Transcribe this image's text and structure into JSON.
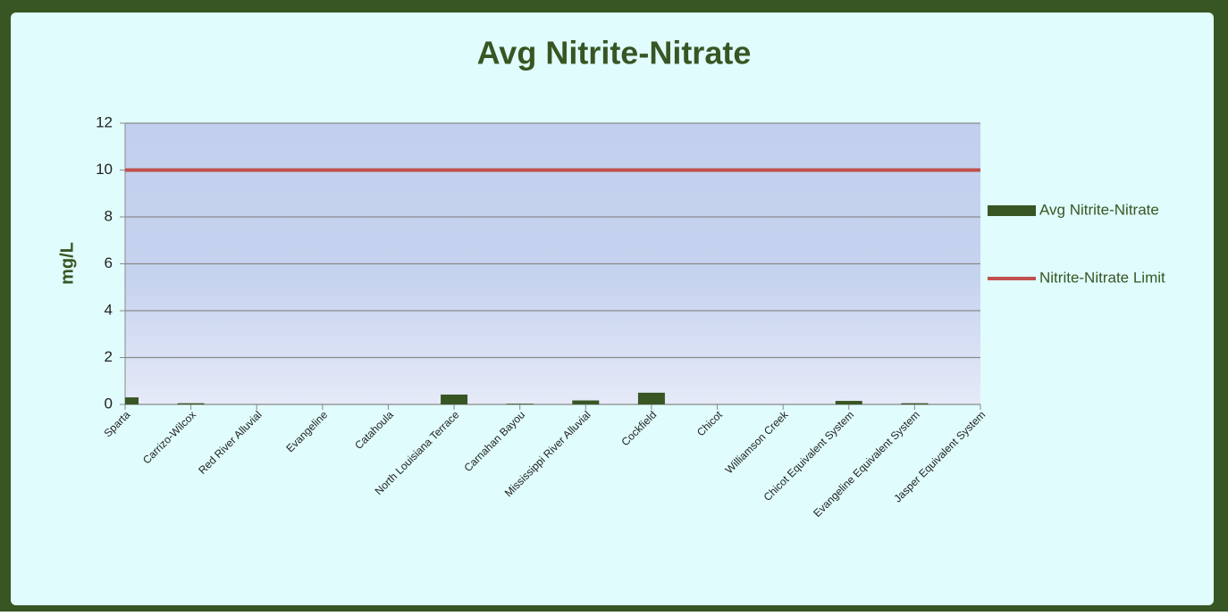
{
  "chart_data": {
    "type": "bar",
    "title": "Avg Nitrite-Nitrate",
    "y_label": "mg/L",
    "categories": [
      "Sparta",
      "Carrizo-Wilcox",
      "Red River Alluvial",
      "Evangeline",
      "Catahoula",
      "North Louisiana Terrace",
      "Carnahan Bayou",
      "Mississippi River Alluvial",
      "Cockfield",
      "Chicot",
      "Williamson Creek",
      "Chicot Equivalent System",
      "Evangeline Equivalent System",
      "Jasper Equivalent System"
    ],
    "series": [
      {
        "name": "Avg Nitrite-Nitrate",
        "type": "bar",
        "color": "#375623",
        "values": [
          0.3,
          0.05,
          0,
          0,
          0,
          0.42,
          0.03,
          0.17,
          0.5,
          0,
          0,
          0.15,
          0.05,
          0
        ]
      },
      {
        "name": "Nitrite-Nitrate Limit",
        "type": "line",
        "color": "#c0504d",
        "values": [
          10,
          10,
          10,
          10,
          10,
          10,
          10,
          10,
          10,
          10,
          10,
          10,
          10,
          10
        ]
      }
    ],
    "ylim": [
      0,
      12
    ],
    "yticks": [
      0,
      2,
      4,
      6,
      8,
      10,
      12
    ],
    "grid": true,
    "legend": "right"
  }
}
